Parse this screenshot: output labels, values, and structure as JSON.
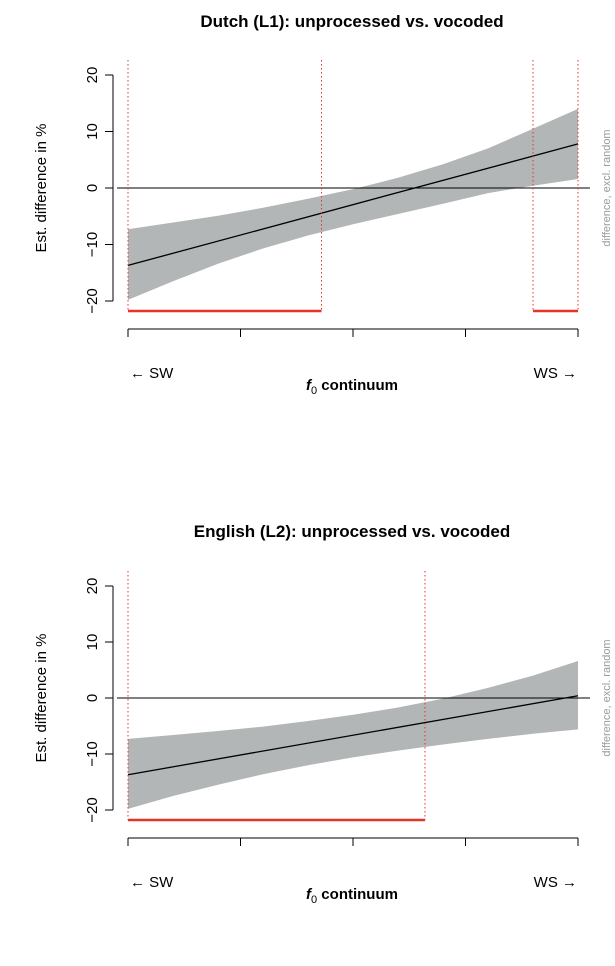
{
  "chart_data": [
    {
      "type": "line",
      "title": "Dutch (L1): unprocessed vs. vocoded",
      "xlabel_symbol": "f",
      "xlabel_subscript": "0",
      "xlabel_rest": " continuum",
      "x_left_label": "← SW",
      "x_right_label": "WS →",
      "ylabel": "Est. difference in %",
      "side_label": "difference, excl. random",
      "ylim": [
        -21,
        21
      ],
      "xlim": [
        0,
        1
      ],
      "yticks": [
        -20,
        -10,
        0,
        10,
        20
      ],
      "ytick_labels": [
        "−20",
        "−10",
        "0",
        "10",
        "20"
      ],
      "xticks": [
        0,
        0.25,
        0.5,
        0.75,
        1
      ],
      "reference_line": 0,
      "fit": {
        "x": [
          0,
          1
        ],
        "y": [
          -13.7,
          7.8
        ]
      },
      "ci_band": {
        "x": [
          0,
          0.1,
          0.2,
          0.3,
          0.4,
          0.5,
          0.6,
          0.7,
          0.8,
          0.9,
          1
        ],
        "lower": [
          -19.8,
          -16.5,
          -13.4,
          -10.7,
          -8.4,
          -6.4,
          -4.6,
          -2.8,
          -0.9,
          0.4,
          1.6
        ],
        "upper": [
          -7.3,
          -6.1,
          -4.9,
          -3.5,
          -1.9,
          -0.2,
          1.8,
          4.2,
          7.0,
          10.5,
          14.0
        ]
      },
      "significance_vlines": [
        0,
        0.43,
        0.9,
        1
      ],
      "significance_regions": [
        [
          0,
          0.43
        ],
        [
          0.9,
          1
        ]
      ],
      "colors": {
        "band": "#b3b6b7",
        "fit": "#000000",
        "significance": "#e8332a"
      }
    },
    {
      "type": "line",
      "title": "English (L2): unprocessed vs. vocoded",
      "xlabel_symbol": "f",
      "xlabel_subscript": "0",
      "xlabel_rest": " continuum",
      "x_left_label": "← SW",
      "x_right_label": "WS →",
      "ylabel": "Est. difference in %",
      "side_label": "difference, excl. random",
      "ylim": [
        -21,
        21
      ],
      "xlim": [
        0,
        1
      ],
      "yticks": [
        -20,
        -10,
        0,
        10,
        20
      ],
      "ytick_labels": [
        "−20",
        "−10",
        "0",
        "10",
        "20"
      ],
      "xticks": [
        0,
        0.25,
        0.5,
        0.75,
        1
      ],
      "reference_line": 0,
      "fit": {
        "x": [
          0,
          1
        ],
        "y": [
          -13.7,
          0.4
        ]
      },
      "ci_band": {
        "x": [
          0,
          0.1,
          0.2,
          0.3,
          0.4,
          0.5,
          0.6,
          0.7,
          0.8,
          0.9,
          1
        ],
        "lower": [
          -19.8,
          -17.5,
          -15.5,
          -13.6,
          -12.0,
          -10.6,
          -9.4,
          -8.3,
          -7.3,
          -6.4,
          -5.6
        ],
        "upper": [
          -7.3,
          -6.6,
          -5.9,
          -5.1,
          -4.1,
          -3.0,
          -1.7,
          -0.1,
          1.8,
          4.0,
          6.6
        ]
      },
      "significance_vlines": [
        0,
        0.66
      ],
      "significance_regions": [
        [
          0,
          0.66
        ]
      ],
      "colors": {
        "band": "#b3b6b7",
        "fit": "#000000",
        "significance": "#e8332a"
      }
    }
  ]
}
